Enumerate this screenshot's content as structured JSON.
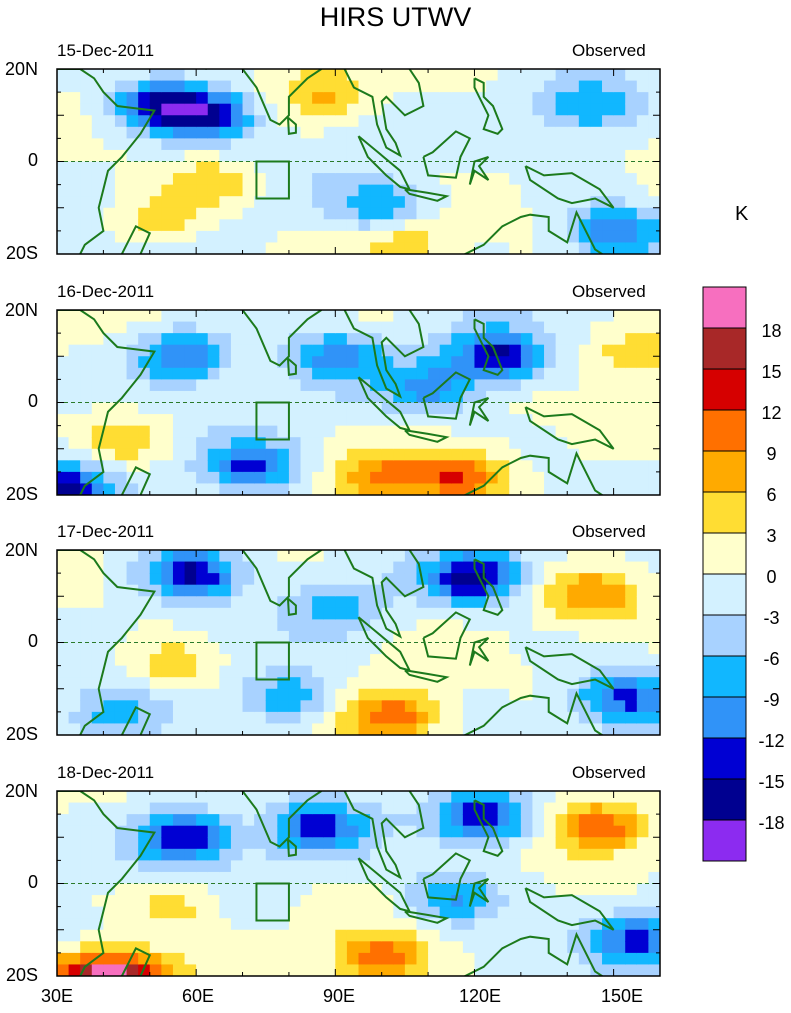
{
  "title": "HIRS UTWV",
  "panels": [
    {
      "date": "15-Dec-2011",
      "label": "Observed"
    },
    {
      "date": "16-Dec-2011",
      "label": "Observed"
    },
    {
      "date": "17-Dec-2011",
      "label": "Observed"
    },
    {
      "date": "18-Dec-2011",
      "label": "Observed"
    }
  ],
  "colorbar": {
    "unit": "K",
    "levels": [
      "18",
      "15",
      "12",
      "9",
      "6",
      "3",
      "0",
      "-3",
      "-6",
      "-9",
      "-12",
      "-15",
      "-18"
    ],
    "colors": [
      "#f76fbf",
      "#a82828",
      "#d60000",
      "#ff7000",
      "#ffaa00",
      "#ffdd33",
      "#ffffcc",
      "#d3f1ff",
      "#a8d2ff",
      "#11b7ff",
      "#3093f8",
      "#0000d3",
      "#000090",
      "#8c2bf0"
    ]
  },
  "chart_data": {
    "type": "heatmap",
    "title": "HIRS UTWV",
    "xlabel": "",
    "ylabel": "",
    "x_range": [
      30,
      160
    ],
    "y_range": [
      -20,
      20
    ],
    "x_ticks": [
      "30E",
      "60E",
      "90E",
      "120E",
      "150E"
    ],
    "y_ticks": [
      "20N",
      "0",
      "20S"
    ],
    "colorbar_unit": "K",
    "panels": [
      {
        "date": "15-Dec-2011",
        "label": "Observed",
        "features": [
          {
            "lon": 53,
            "lat": 12,
            "value": -15
          },
          {
            "lon": 63,
            "lat": 10,
            "value": -12
          },
          {
            "lon": 52,
            "lat": -13,
            "value": 6
          },
          {
            "lon": 64,
            "lat": -5,
            "value": 6
          },
          {
            "lon": 88,
            "lat": 15,
            "value": 6
          },
          {
            "lon": 105,
            "lat": -17,
            "value": 6
          },
          {
            "lon": 100,
            "lat": -10,
            "value": -9
          },
          {
            "lon": 145,
            "lat": 12,
            "value": -9
          },
          {
            "lon": 150,
            "lat": -15,
            "value": -12
          },
          {
            "lon": 115,
            "lat": 17,
            "value": 3
          }
        ]
      },
      {
        "date": "16-Dec-2011",
        "label": "Observed",
        "features": [
          {
            "lon": 57,
            "lat": 10,
            "value": -12
          },
          {
            "lon": 125,
            "lat": 10,
            "value": -15
          },
          {
            "lon": 117,
            "lat": -16,
            "value": 12
          },
          {
            "lon": 100,
            "lat": -16,
            "value": 9
          },
          {
            "lon": 155,
            "lat": 10,
            "value": 6
          },
          {
            "lon": 45,
            "lat": -8,
            "value": 6
          },
          {
            "lon": 90,
            "lat": 10,
            "value": -9
          },
          {
            "lon": 110,
            "lat": 3,
            "value": -9
          },
          {
            "lon": 72,
            "lat": -14,
            "value": -12
          },
          {
            "lon": 32,
            "lat": -19,
            "value": -15
          }
        ]
      },
      {
        "date": "17-Dec-2011",
        "label": "Observed",
        "features": [
          {
            "lon": 59,
            "lat": 15,
            "value": -15
          },
          {
            "lon": 120,
            "lat": 14,
            "value": -15
          },
          {
            "lon": 102,
            "lat": -16,
            "value": 12
          },
          {
            "lon": 145,
            "lat": 10,
            "value": 9
          },
          {
            "lon": 55,
            "lat": -5,
            "value": 6
          },
          {
            "lon": 152,
            "lat": -12,
            "value": -12
          },
          {
            "lon": 90,
            "lat": 8,
            "value": -6
          },
          {
            "lon": 43,
            "lat": -16,
            "value": -6
          },
          {
            "lon": 80,
            "lat": -12,
            "value": -9
          }
        ]
      },
      {
        "date": "18-Dec-2011",
        "label": "Observed",
        "features": [
          {
            "lon": 57,
            "lat": 10,
            "value": -15
          },
          {
            "lon": 86,
            "lat": 12,
            "value": -12
          },
          {
            "lon": 122,
            "lat": 14,
            "value": -15
          },
          {
            "lon": 147,
            "lat": 12,
            "value": 12
          },
          {
            "lon": 100,
            "lat": -16,
            "value": 12
          },
          {
            "lon": 45,
            "lat": -20,
            "value": 15
          },
          {
            "lon": 35,
            "lat": -20,
            "value": 12
          },
          {
            "lon": 55,
            "lat": -5,
            "value": 6
          },
          {
            "lon": 155,
            "lat": -12,
            "value": -12
          },
          {
            "lon": 115,
            "lat": -3,
            "value": -9
          }
        ]
      }
    ]
  }
}
